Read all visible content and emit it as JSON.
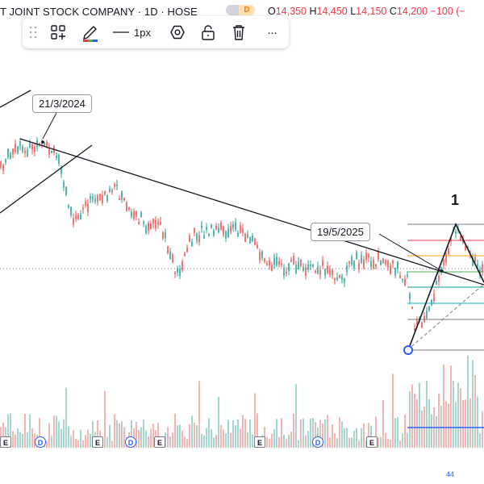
{
  "header": {
    "title": "T JOINT STOCK COMPANY · 1D · HOSE",
    "badge": "D",
    "ohlc": [
      {
        "key": "O",
        "value": "14,350"
      },
      {
        "key": "H",
        "value": "14,450"
      },
      {
        "key": "L",
        "value": "14,150"
      },
      {
        "key": "C",
        "value": "14,200"
      }
    ],
    "change": "−100",
    "change_pct": "(−"
  },
  "toolbar": {
    "line_width_label": "1px",
    "more_label": "···"
  },
  "annotations": {
    "date_label_1": "21/3/2024",
    "date_label_2": "19/5/2025",
    "wave_label": "1"
  },
  "event_markers": {
    "earnings": "E",
    "dividend": "D"
  },
  "corner_text": "44",
  "colors": {
    "up": "#26a69a",
    "down": "#ef5350",
    "line": "#131722",
    "accent": "#2962ff"
  }
}
